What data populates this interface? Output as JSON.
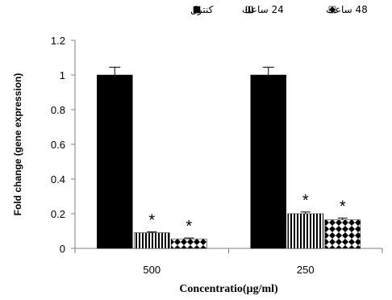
{
  "chart_data": {
    "type": "bar",
    "xlabel": "Concentratio(µg/ml)",
    "ylabel": "Fold change (gene expression)",
    "categories": [
      "500",
      "250"
    ],
    "ylim": [
      0,
      1.2
    ],
    "yticks": [
      "0",
      "0.2",
      "0.4",
      "0.6",
      "0.8",
      "1",
      "1.2"
    ],
    "grid": false,
    "legend_position": "top",
    "series": [
      {
        "name": "کنترل",
        "values": [
          1.0,
          1.0
        ],
        "errors": [
          0.045,
          0.045
        ],
        "pattern": "solid",
        "color": "#000000",
        "significant": [
          false,
          false
        ]
      },
      {
        "name": "24 ساعت",
        "values": [
          0.09,
          0.2
        ],
        "errors": [
          0.005,
          0.01
        ],
        "pattern": "vertical-stripes",
        "color": "#000000",
        "significant": [
          true,
          true
        ]
      },
      {
        "name": "48 ساعت",
        "values": [
          0.055,
          0.165
        ],
        "errors": [
          0.005,
          0.01
        ],
        "pattern": "checker",
        "color": "#000000",
        "significant": [
          true,
          true
        ]
      }
    ],
    "significance_marker": "*"
  }
}
